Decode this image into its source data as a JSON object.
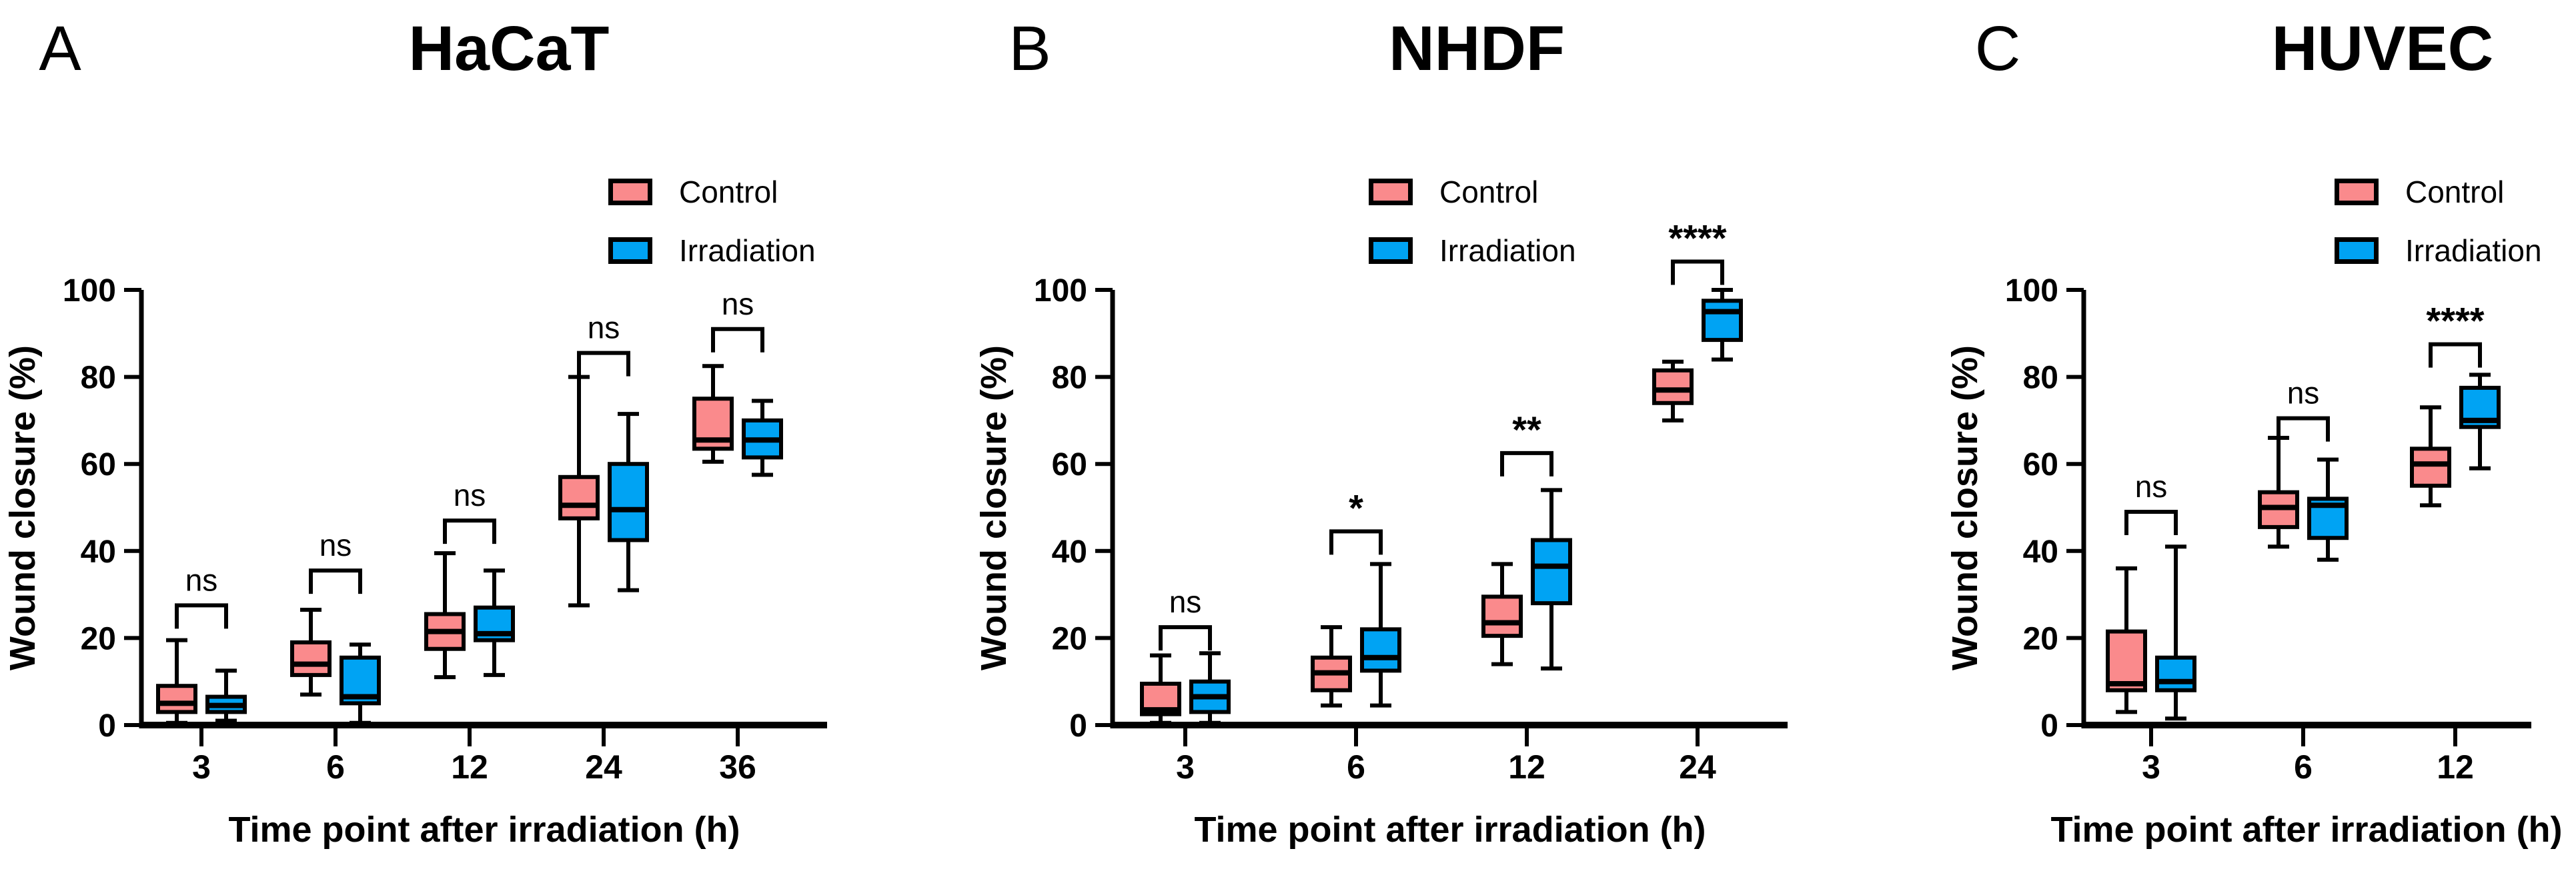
{
  "figure": {
    "legend": {
      "control_label": "Control",
      "irradiation_label": "Irradiation"
    },
    "colors": {
      "control_fill": "#FA8A8C",
      "irradiation_fill": "#00A3F3",
      "stroke": "#000000"
    }
  },
  "chart_data": [
    {
      "type": "boxplot",
      "panel_letter": "A",
      "title": "HaCaT",
      "xlabel": "Time point after irradiation (h)",
      "ylabel": "Wound closure (%)",
      "ylim": [
        0,
        100
      ],
      "yticks": [
        0,
        20,
        40,
        60,
        80,
        100
      ],
      "categories": [
        "3",
        "6",
        "12",
        "24",
        "36"
      ],
      "legend_position": "top-right",
      "series": [
        {
          "name": "Control",
          "color_key": "control",
          "boxes": [
            {
              "min": 0.5,
              "q1": 3,
              "median": 5,
              "q3": 9,
              "max": 19.5
            },
            {
              "min": 7,
              "q1": 11.5,
              "median": 14,
              "q3": 19,
              "max": 26.5
            },
            {
              "min": 11,
              "q1": 17.5,
              "median": 21.5,
              "q3": 25.5,
              "max": 39.5
            },
            {
              "min": 27.5,
              "q1": 47.5,
              "median": 50.5,
              "q3": 57,
              "max": 80
            },
            {
              "min": 60.5,
              "q1": 63.5,
              "median": 65.5,
              "q3": 75,
              "max": 82.5
            }
          ]
        },
        {
          "name": "Irradiation",
          "color_key": "irradiation",
          "boxes": [
            {
              "min": 1,
              "q1": 3,
              "median": 4.5,
              "q3": 6.5,
              "max": 12.5
            },
            {
              "min": 0.5,
              "q1": 5,
              "median": 6.5,
              "q3": 15.5,
              "max": 18.5
            },
            {
              "min": 11.5,
              "q1": 19.5,
              "median": 21,
              "q3": 27,
              "max": 35.5
            },
            {
              "min": 31,
              "q1": 42.5,
              "median": 49.5,
              "q3": 60,
              "max": 71.5
            },
            {
              "min": 57.5,
              "q1": 61.5,
              "median": 65.5,
              "q3": 70,
              "max": 74.5
            }
          ]
        }
      ],
      "significance": [
        {
          "label": "ns",
          "y": 27.5
        },
        {
          "label": "ns",
          "y": 35.5
        },
        {
          "label": "ns",
          "y": 47
        },
        {
          "label": "ns",
          "y": 85.5
        },
        {
          "label": "ns",
          "y": 91
        }
      ]
    },
    {
      "type": "boxplot",
      "panel_letter": "B",
      "title": "NHDF",
      "xlabel": "Time point after irradiation (h)",
      "ylabel": "Wound closure (%)",
      "ylim": [
        0,
        100
      ],
      "yticks": [
        0,
        20,
        40,
        60,
        80,
        100
      ],
      "categories": [
        "3",
        "6",
        "12",
        "24"
      ],
      "legend_position": "top-right",
      "series": [
        {
          "name": "Control",
          "color_key": "control",
          "boxes": [
            {
              "min": 0.5,
              "q1": 2.5,
              "median": 3.5,
              "q3": 9.5,
              "max": 16
            },
            {
              "min": 4.5,
              "q1": 8,
              "median": 12,
              "q3": 15.5,
              "max": 22.5
            },
            {
              "min": 14,
              "q1": 20.5,
              "median": 23.5,
              "q3": 29.5,
              "max": 37
            },
            {
              "min": 70,
              "q1": 74,
              "median": 77,
              "q3": 81.5,
              "max": 83.5
            }
          ]
        },
        {
          "name": "Irradiation",
          "color_key": "irradiation",
          "boxes": [
            {
              "min": 0.5,
              "q1": 3,
              "median": 6.5,
              "q3": 10,
              "max": 16.5
            },
            {
              "min": 4.5,
              "q1": 12.5,
              "median": 15.5,
              "q3": 22,
              "max": 37
            },
            {
              "min": 13,
              "q1": 28,
              "median": 36.5,
              "q3": 42.5,
              "max": 54
            },
            {
              "min": 84,
              "q1": 88.5,
              "median": 95,
              "q3": 97.5,
              "max": 100
            }
          ]
        }
      ],
      "significance": [
        {
          "label": "ns",
          "y": 22.5
        },
        {
          "label": "*",
          "y": 44.5
        },
        {
          "label": "**",
          "y": 62.5
        },
        {
          "label": "****",
          "y": 106.5
        }
      ]
    },
    {
      "type": "boxplot",
      "panel_letter": "C",
      "title": "HUVEC",
      "xlabel": "Time point after irradiation (h)",
      "ylabel": "Wound closure (%)",
      "ylim": [
        0,
        100
      ],
      "yticks": [
        0,
        20,
        40,
        60,
        80,
        100
      ],
      "categories": [
        "3",
        "6",
        "12"
      ],
      "legend_position": "top-right",
      "series": [
        {
          "name": "Control",
          "color_key": "control",
          "boxes": [
            {
              "min": 3,
              "q1": 8,
              "median": 9.5,
              "q3": 21.5,
              "max": 36
            },
            {
              "min": 41,
              "q1": 45.5,
              "median": 50,
              "q3": 53.5,
              "max": 66
            },
            {
              "min": 50.5,
              "q1": 55,
              "median": 60,
              "q3": 63.5,
              "max": 73
            }
          ]
        },
        {
          "name": "Irradiation",
          "color_key": "irradiation",
          "boxes": [
            {
              "min": 1.5,
              "q1": 8,
              "median": 10,
              "q3": 15.5,
              "max": 41
            },
            {
              "min": 38,
              "q1": 43,
              "median": 50.5,
              "q3": 52,
              "max": 61
            },
            {
              "min": 59,
              "q1": 68.5,
              "median": 70,
              "q3": 77.5,
              "max": 80.5
            }
          ]
        }
      ],
      "significance": [
        {
          "label": "ns",
          "y": 49
        },
        {
          "label": "ns",
          "y": 70.5
        },
        {
          "label": "****",
          "y": 87.5
        }
      ]
    }
  ]
}
